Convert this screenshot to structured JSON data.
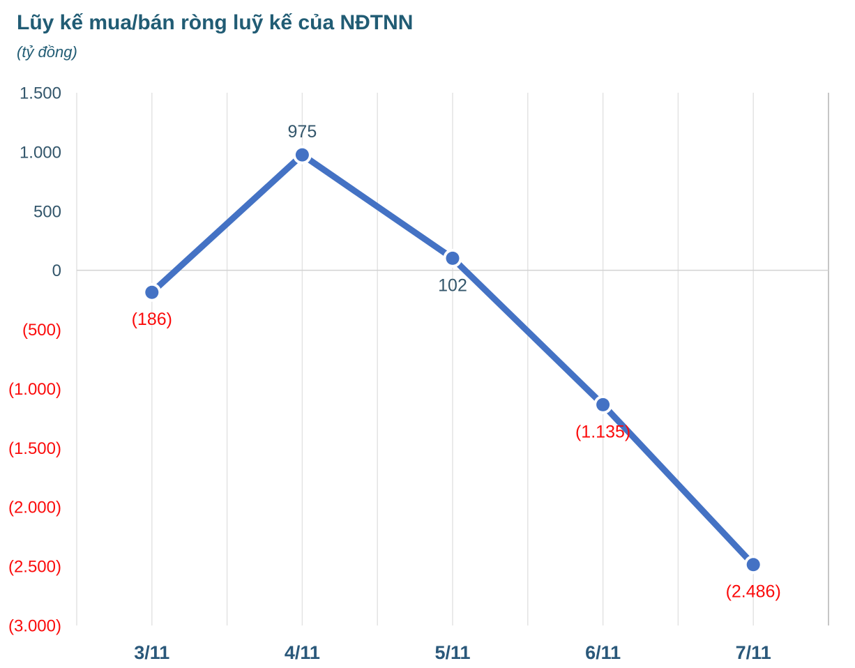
{
  "header": {
    "title": "Lũy kế mua/bán ròng luỹ kế của NĐTNN",
    "subtitle": "(tỷ đồng)"
  },
  "colors": {
    "line": "#4472C4",
    "marker": "#4472C4",
    "marker_halo": "#FFFFFF",
    "positive_text": "#33566B",
    "negative_text": "#FB0B0B",
    "title_text": "#215C74",
    "axis_label_text": "#2A587A",
    "gridline": "#E3E3E3",
    "zero_line": "#D2D2D2",
    "right_border": "#C6C6C6",
    "background": "#FFFFFF"
  },
  "chart_data": {
    "type": "line",
    "title": "Lũy kế mua/bán ròng luỹ kế của NĐTNN",
    "unit_label": "(tỷ đồng)",
    "categories": [
      "3/11",
      "4/11",
      "5/11",
      "6/11",
      "7/11"
    ],
    "series": [
      {
        "name": "Lũy kế mua/bán ròng của NĐTNN",
        "values": [
          -186,
          975,
          102,
          -1135,
          -2486
        ]
      }
    ],
    "data_labels": [
      "(186)",
      "975",
      "102",
      "(1.135)",
      "(2.486)"
    ],
    "data_label_positions": [
      "below",
      "above",
      "below",
      "below",
      "below"
    ],
    "ylim": [
      -3000,
      1500
    ],
    "ytick_step": 500,
    "yticks": [
      1500,
      1000,
      500,
      0,
      -500,
      -1000,
      -1500,
      -2000,
      -2500,
      -3000
    ],
    "ytick_labels": [
      "1.500",
      "1.000",
      "500",
      "0",
      "(500)",
      "(1.000)",
      "(1.500)",
      "(2.000)",
      "(2.500)",
      "(3.000)"
    ],
    "xlabel": "",
    "ylabel": "(tỷ đồng)",
    "grid": "vertical-only",
    "minor_vertical_gridlines": true,
    "legend": "none",
    "number_format": "negative values shown in parentheses and red"
  }
}
